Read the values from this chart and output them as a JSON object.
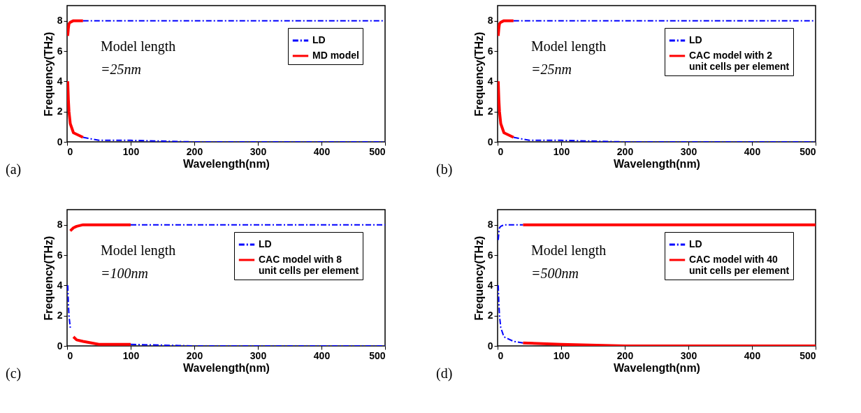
{
  "chart_data": [
    {
      "type": "line",
      "xlabel": "Wavelength(nm)",
      "ylabel": "Frequency(THz)",
      "xlim": [
        0,
        500
      ],
      "ylim": [
        0,
        9
      ],
      "xticks": [
        0,
        100,
        200,
        300,
        400,
        500
      ],
      "yticks": [
        0,
        2,
        4,
        6,
        8
      ],
      "legend": "top right",
      "annotations": [
        "(a)",
        "Model length",
        "=25nm"
      ],
      "series": [
        {
          "name": "LD",
          "color": "#0000ff",
          "line_style": "dashed",
          "x": [
            25,
            50,
            100,
            200,
            300,
            400,
            500,
            null,
            25,
            50,
            100,
            200,
            300,
            400,
            500
          ],
          "values": [
            8,
            8,
            8,
            8,
            8,
            8,
            8,
            null,
            0.3,
            0.1,
            0.1,
            0,
            0,
            0,
            0
          ]
        },
        {
          "name": "MD model",
          "color": "#ff0000",
          "line_style": "solid",
          "x": [
            1,
            2,
            3,
            5,
            10,
            25,
            null,
            1,
            2,
            3,
            5,
            10,
            25
          ],
          "values": [
            7,
            7.5,
            7.8,
            7.9,
            8,
            8,
            null,
            4,
            2.8,
            2,
            1.2,
            0.6,
            0.3
          ]
        }
      ]
    },
    {
      "type": "line",
      "xlabel": "Wavelength(nm)",
      "ylabel": "Frequency(THz)",
      "xlim": [
        0,
        500
      ],
      "ylim": [
        0,
        9
      ],
      "xticks": [
        0,
        100,
        200,
        300,
        400,
        500
      ],
      "yticks": [
        0,
        2,
        4,
        6,
        8
      ],
      "legend": "top right",
      "annotations": [
        "(b)",
        "Model length",
        "=25nm"
      ],
      "series": [
        {
          "name": "LD",
          "color": "#0000ff",
          "line_style": "dashed",
          "x": [
            25,
            50,
            100,
            200,
            300,
            400,
            500,
            null,
            25,
            50,
            100,
            200,
            300,
            400,
            500
          ],
          "values": [
            8,
            8,
            8,
            8,
            8,
            8,
            8,
            null,
            0.3,
            0.1,
            0.1,
            0,
            0,
            0,
            0
          ]
        },
        {
          "name": "CAC model with 2 unit cells per element",
          "color": "#ff0000",
          "line_style": "solid",
          "x": [
            1,
            2,
            3,
            5,
            10,
            25,
            null,
            1,
            2,
            3,
            5,
            10,
            25
          ],
          "values": [
            7,
            7.5,
            7.8,
            7.9,
            8,
            8,
            null,
            4,
            2.8,
            2,
            1.2,
            0.6,
            0.3
          ]
        }
      ]
    },
    {
      "type": "line",
      "xlabel": "Wavelength(nm)",
      "ylabel": "Frequency(THz)",
      "xlim": [
        0,
        500
      ],
      "ylim": [
        0,
        9
      ],
      "xticks": [
        0,
        100,
        200,
        300,
        400,
        500
      ],
      "yticks": [
        0,
        2,
        4,
        6,
        8
      ],
      "legend": "top right",
      "annotations": [
        "(c)",
        "Model length",
        "=100nm"
      ],
      "series": [
        {
          "name": "LD",
          "color": "#0000ff",
          "line_style": "dashed",
          "x": [
            100,
            200,
            300,
            400,
            500,
            null,
            1,
            2,
            3,
            5,
            null,
            100,
            200,
            300,
            400,
            500
          ],
          "values": [
            8,
            8,
            8,
            8,
            8,
            null,
            4,
            2.8,
            2,
            1.2,
            null,
            0.1,
            0,
            0,
            0,
            0
          ]
        },
        {
          "name": "CAC model with 8 unit cells per element",
          "color": "#ff0000",
          "line_style": "solid",
          "x": [
            5,
            10,
            15,
            25,
            50,
            100,
            null,
            10,
            15,
            25,
            50,
            100
          ],
          "values": [
            7.6,
            7.8,
            7.9,
            8,
            8,
            8,
            null,
            0.6,
            0.4,
            0.3,
            0.1,
            0.1
          ]
        }
      ]
    },
    {
      "type": "line",
      "xlabel": "Wavelength(nm)",
      "ylabel": "Frequency(THz)",
      "xlim": [
        0,
        500
      ],
      "ylim": [
        0,
        9
      ],
      "xticks": [
        0,
        100,
        200,
        300,
        400,
        500
      ],
      "yticks": [
        0,
        2,
        4,
        6,
        8
      ],
      "legend": "top right",
      "annotations": [
        "(d)",
        "Model length",
        "=500nm"
      ],
      "series": [
        {
          "name": "LD",
          "color": "#0000ff",
          "line_style": "dashed",
          "x": [
            1,
            2,
            3,
            5,
            10,
            25,
            40,
            null,
            1,
            2,
            3,
            5,
            10,
            25,
            40
          ],
          "values": [
            7,
            7.5,
            7.8,
            7.9,
            8,
            8,
            8,
            null,
            4,
            2.8,
            2,
            1.2,
            0.6,
            0.3,
            0.2
          ]
        },
        {
          "name": "CAC model with 40 unit cells per element",
          "color": "#ff0000",
          "line_style": "solid",
          "x": [
            40,
            100,
            200,
            300,
            400,
            500,
            null,
            40,
            100,
            200,
            300,
            400,
            500
          ],
          "values": [
            8,
            8,
            8,
            8,
            8,
            8,
            null,
            0.2,
            0.1,
            0,
            0,
            0,
            0
          ]
        }
      ]
    }
  ]
}
